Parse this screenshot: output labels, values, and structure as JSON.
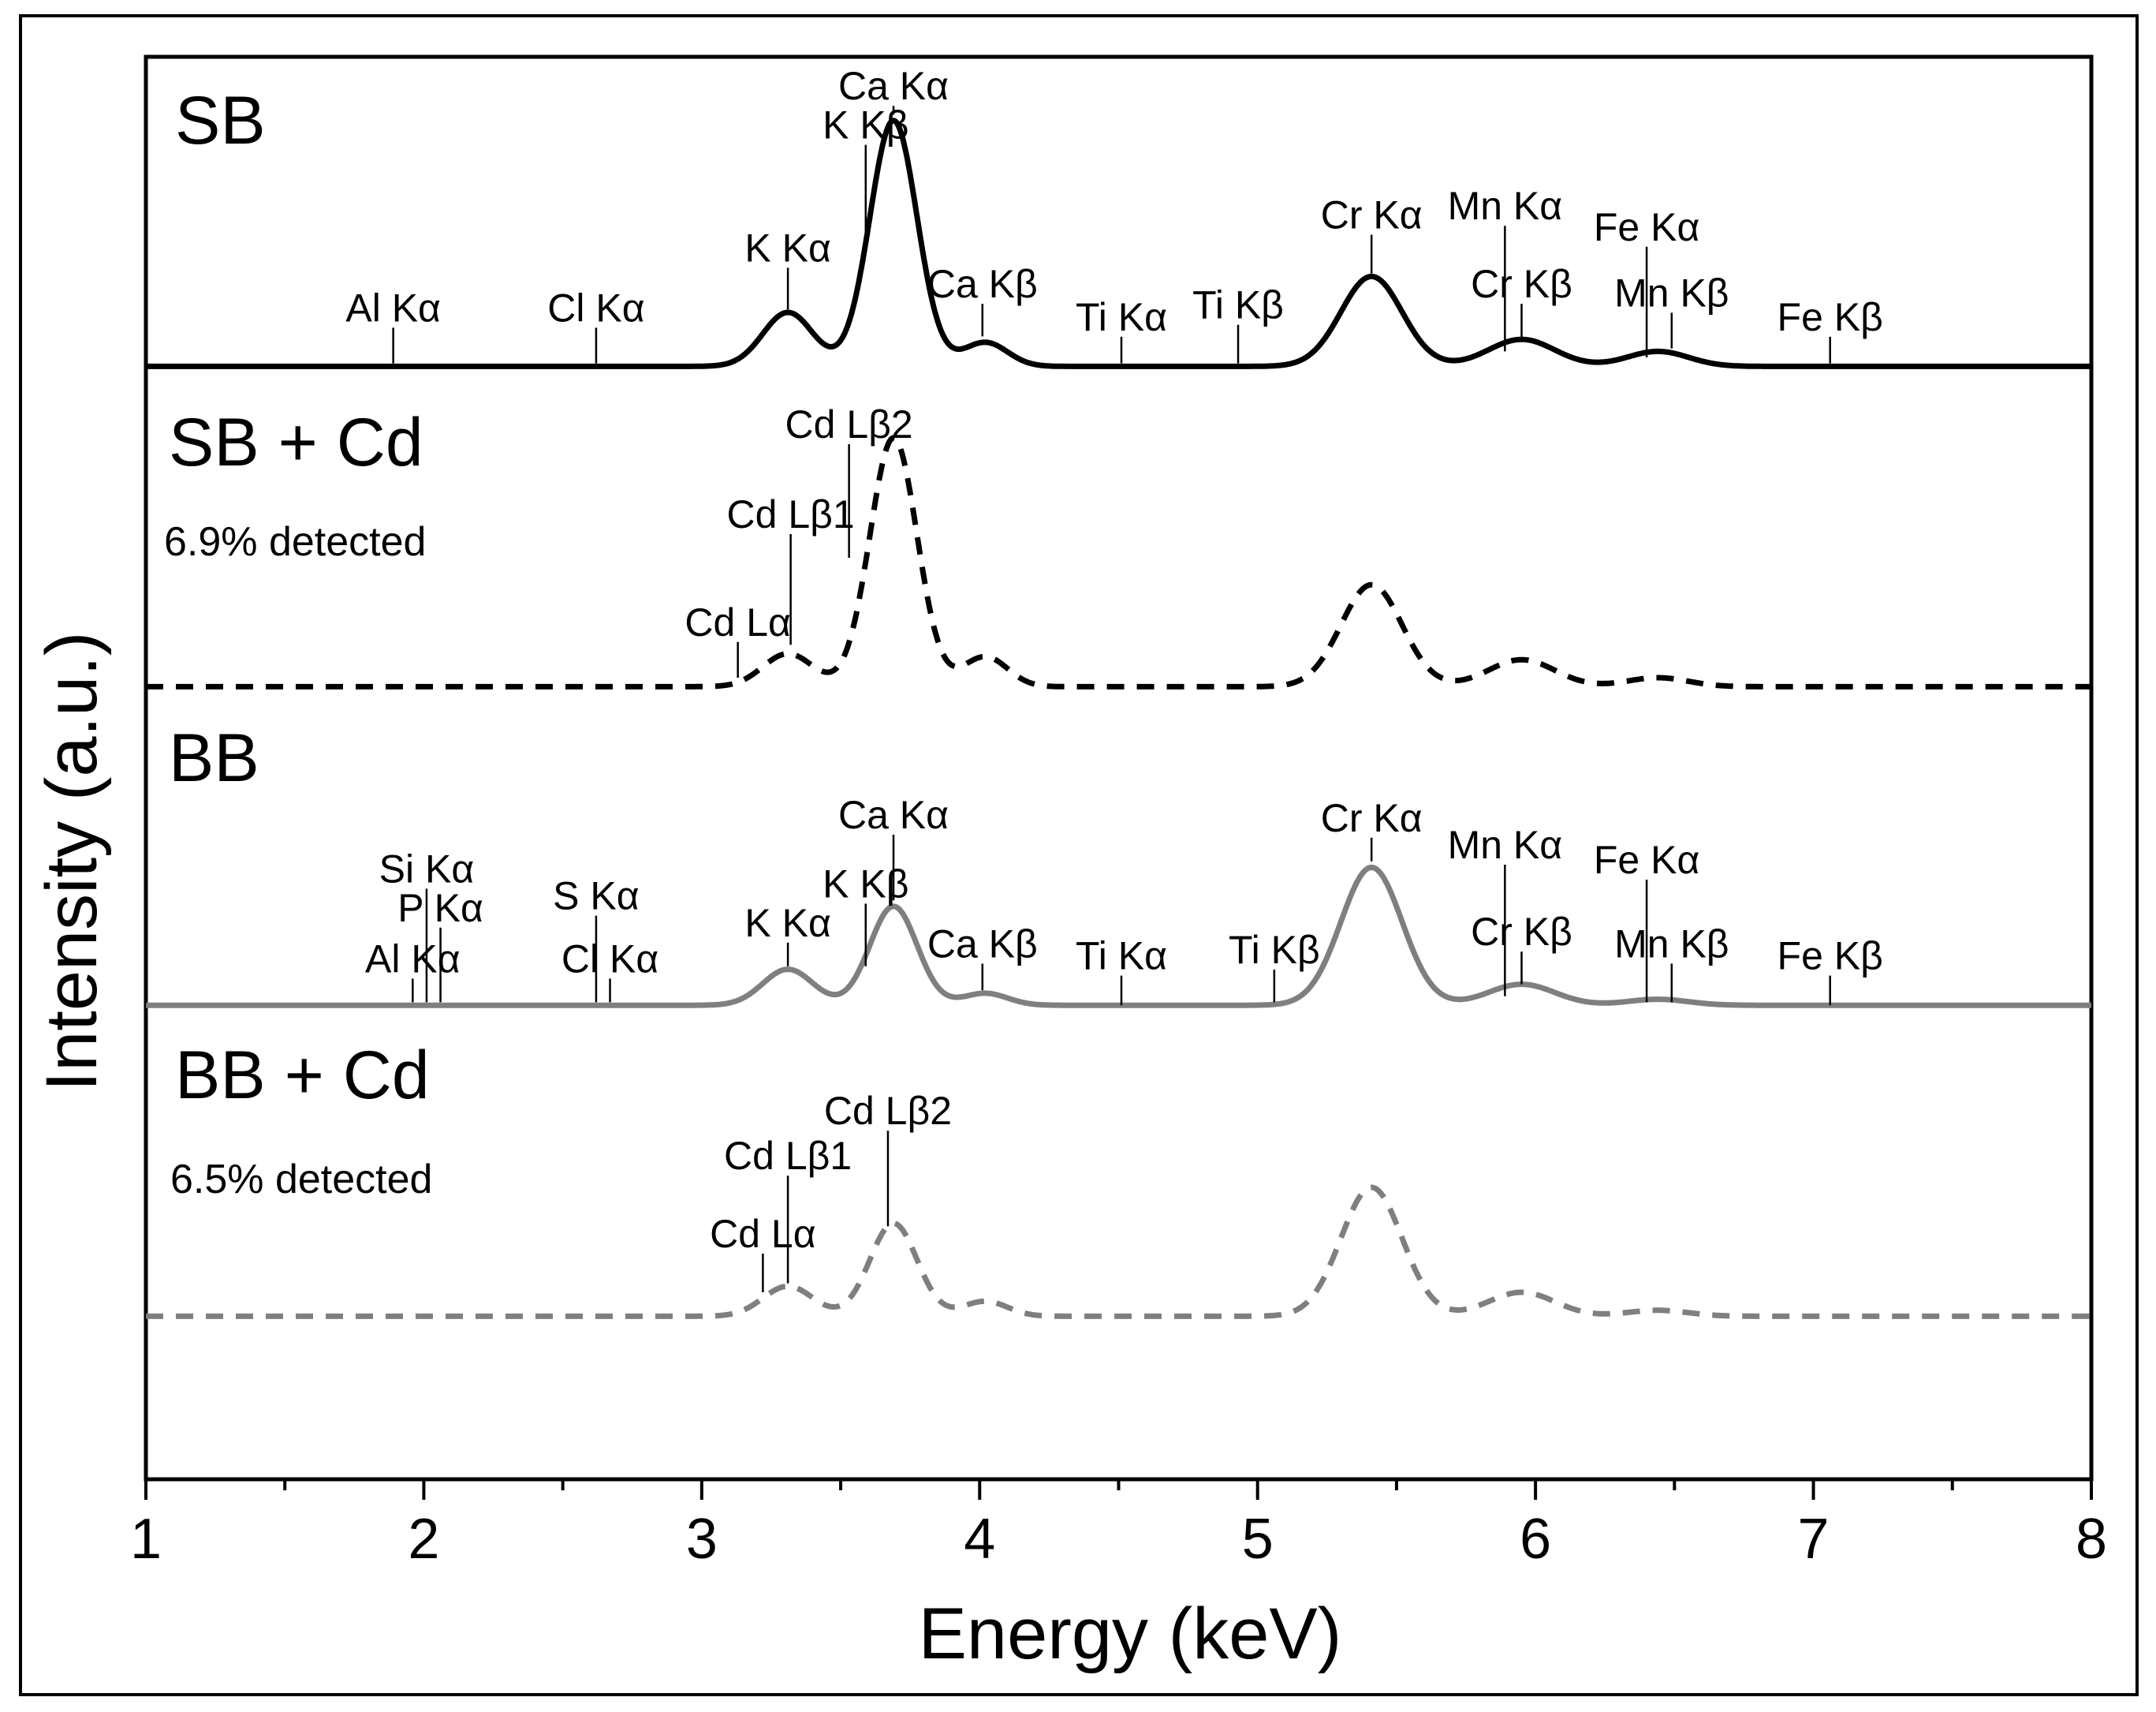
{
  "chart_data": {
    "type": "line",
    "title": "",
    "xlabel": "Energy (keV)",
    "ylabel": "Intensity (a.u.)",
    "xlim": [
      1,
      8
    ],
    "xticks": [
      "1",
      "2",
      "3",
      "4",
      "5",
      "6",
      "7",
      "8"
    ],
    "series": [
      {
        "name": "SB",
        "label": "SB",
        "note": "",
        "style": "solid",
        "color": "#000000",
        "baseline": 0.02,
        "peaks": [
          {
            "energy": 3.31,
            "height": 0.18,
            "width": 0.09
          },
          {
            "energy": 3.69,
            "height": 0.82,
            "width": 0.085
          },
          {
            "energy": 4.02,
            "height": 0.08,
            "width": 0.08
          },
          {
            "energy": 5.41,
            "height": 0.3,
            "width": 0.11
          },
          {
            "energy": 5.95,
            "height": 0.09,
            "width": 0.12
          },
          {
            "energy": 6.44,
            "height": 0.05,
            "width": 0.11
          }
        ],
        "annotations": [
          {
            "text": "Al Kα",
            "energy": 1.89,
            "ytip": 0.03,
            "ylabel": 0.17
          },
          {
            "text": "Cl Kα",
            "energy": 2.62,
            "ytip": 0.03,
            "ylabel": 0.17
          },
          {
            "text": "K Kα",
            "energy": 3.31,
            "ytip": 0.21,
            "ylabel": 0.37
          },
          {
            "text": "K Kβ",
            "energy": 3.59,
            "ytip": 0.45,
            "ylabel": 0.78
          },
          {
            "text": "Ca Kα",
            "energy": 3.69,
            "ytip": 0.86,
            "ylabel": 0.91
          },
          {
            "text": "Ca Kβ",
            "energy": 4.01,
            "ytip": 0.12,
            "ylabel": 0.25
          },
          {
            "text": "Ti Kα",
            "energy": 4.51,
            "ytip": 0.03,
            "ylabel": 0.14
          },
          {
            "text": "Ti Kβ",
            "energy": 4.93,
            "ytip": 0.03,
            "ylabel": 0.18
          },
          {
            "text": "Cr Kα",
            "energy": 5.41,
            "ytip": 0.33,
            "ylabel": 0.48
          },
          {
            "text": "Mn Kα",
            "energy": 5.89,
            "ytip": 0.07,
            "ylabel": 0.51
          },
          {
            "text": "Cr Kβ",
            "energy": 5.95,
            "ytip": 0.11,
            "ylabel": 0.25
          },
          {
            "text": "Fe Kα",
            "energy": 6.4,
            "ytip": 0.05,
            "ylabel": 0.44
          },
          {
            "text": "Mn Kβ",
            "energy": 6.49,
            "ytip": 0.08,
            "ylabel": 0.22
          },
          {
            "text": "Fe Kβ",
            "energy": 7.06,
            "ytip": 0.03,
            "ylabel": 0.14
          }
        ]
      },
      {
        "name": "SB + Cd",
        "label": "SB + Cd",
        "note": "6.9% detected",
        "style": "dashed",
        "color": "#000000",
        "baseline": 0.02,
        "peaks": [
          {
            "energy": 3.31,
            "height": 0.11,
            "width": 0.09
          },
          {
            "energy": 3.69,
            "height": 0.83,
            "width": 0.085
          },
          {
            "energy": 4.02,
            "height": 0.1,
            "width": 0.08
          },
          {
            "energy": 5.41,
            "height": 0.34,
            "width": 0.11
          },
          {
            "energy": 5.95,
            "height": 0.09,
            "width": 0.12
          },
          {
            "energy": 6.44,
            "height": 0.03,
            "width": 0.11
          }
        ],
        "annotations": [
          {
            "text": "Cd Lα",
            "energy": 3.13,
            "ytip": 0.05,
            "ylabel": 0.19
          },
          {
            "text": "Cd Lβ1",
            "energy": 3.32,
            "ytip": 0.16,
            "ylabel": 0.55
          },
          {
            "text": "Cd Lβ2",
            "energy": 3.53,
            "ytip": 0.45,
            "ylabel": 0.85
          }
        ]
      },
      {
        "name": "BB",
        "label": "BB",
        "note": "",
        "style": "solid",
        "color": "#7f7f7f",
        "baseline": 0.01,
        "peaks": [
          {
            "energy": 3.31,
            "height": 0.12,
            "width": 0.09
          },
          {
            "energy": 3.69,
            "height": 0.33,
            "width": 0.085
          },
          {
            "energy": 4.02,
            "height": 0.04,
            "width": 0.08
          },
          {
            "energy": 5.41,
            "height": 0.46,
            "width": 0.11
          },
          {
            "energy": 5.95,
            "height": 0.07,
            "width": 0.12
          },
          {
            "energy": 6.44,
            "height": 0.02,
            "width": 0.11
          }
        ],
        "annotations": [
          {
            "text": "Al Kα",
            "energy": 1.96,
            "ytip": 0.02,
            "ylabel": 0.12
          },
          {
            "text": "Si Kα",
            "energy": 2.01,
            "ytip": 0.02,
            "ylabel": 0.42
          },
          {
            "text": "P Kα",
            "energy": 2.06,
            "ytip": 0.02,
            "ylabel": 0.29
          },
          {
            "text": "S Kα",
            "energy": 2.62,
            "ytip": 0.02,
            "ylabel": 0.33
          },
          {
            "text": "Cl Kα",
            "energy": 2.67,
            "ytip": 0.02,
            "ylabel": 0.12
          },
          {
            "text": "K Kα",
            "energy": 3.31,
            "ytip": 0.14,
            "ylabel": 0.24
          },
          {
            "text": "K Kβ",
            "energy": 3.59,
            "ytip": 0.14,
            "ylabel": 0.37
          },
          {
            "text": "Ca Kα",
            "energy": 3.69,
            "ytip": 0.36,
            "ylabel": 0.6
          },
          {
            "text": "Ca Kβ",
            "energy": 4.01,
            "ytip": 0.06,
            "ylabel": 0.17
          },
          {
            "text": "Ti Kα",
            "energy": 4.51,
            "ytip": 0.01,
            "ylabel": 0.13
          },
          {
            "text": "Ti Kβ",
            "energy": 5.06,
            "ytip": 0.02,
            "ylabel": 0.15
          },
          {
            "text": "Cr Kα",
            "energy": 5.41,
            "ytip": 0.49,
            "ylabel": 0.59
          },
          {
            "text": "Mn Kα",
            "energy": 5.89,
            "ytip": 0.04,
            "ylabel": 0.5
          },
          {
            "text": "Cr Kβ",
            "energy": 5.95,
            "ytip": 0.08,
            "ylabel": 0.21
          },
          {
            "text": "Fe Kα",
            "energy": 6.4,
            "ytip": 0.02,
            "ylabel": 0.45
          },
          {
            "text": "Mn Kβ",
            "energy": 6.49,
            "ytip": 0.02,
            "ylabel": 0.17
          },
          {
            "text": "Fe Kβ",
            "energy": 7.06,
            "ytip": 0.01,
            "ylabel": 0.13
          }
        ]
      },
      {
        "name": "BB + Cd",
        "label": "BB + Cd",
        "note": "6.5% detected",
        "style": "dashed",
        "color": "#7f7f7f",
        "baseline": 0.02,
        "peaks": [
          {
            "energy": 3.31,
            "height": 0.1,
            "width": 0.09
          },
          {
            "energy": 3.69,
            "height": 0.31,
            "width": 0.085
          },
          {
            "energy": 4.02,
            "height": 0.05,
            "width": 0.08
          },
          {
            "energy": 5.41,
            "height": 0.43,
            "width": 0.11
          },
          {
            "energy": 5.95,
            "height": 0.08,
            "width": 0.12
          },
          {
            "energy": 6.44,
            "height": 0.02,
            "width": 0.11
          }
        ],
        "annotations": [
          {
            "text": "Cd Lα",
            "energy": 3.22,
            "ytip": 0.1,
            "ylabel": 0.25
          },
          {
            "text": "Cd Lβ1",
            "energy": 3.31,
            "ytip": 0.13,
            "ylabel": 0.51
          },
          {
            "text": "Cd Lβ2",
            "energy": 3.67,
            "ytip": 0.32,
            "ylabel": 0.66
          }
        ]
      }
    ]
  }
}
